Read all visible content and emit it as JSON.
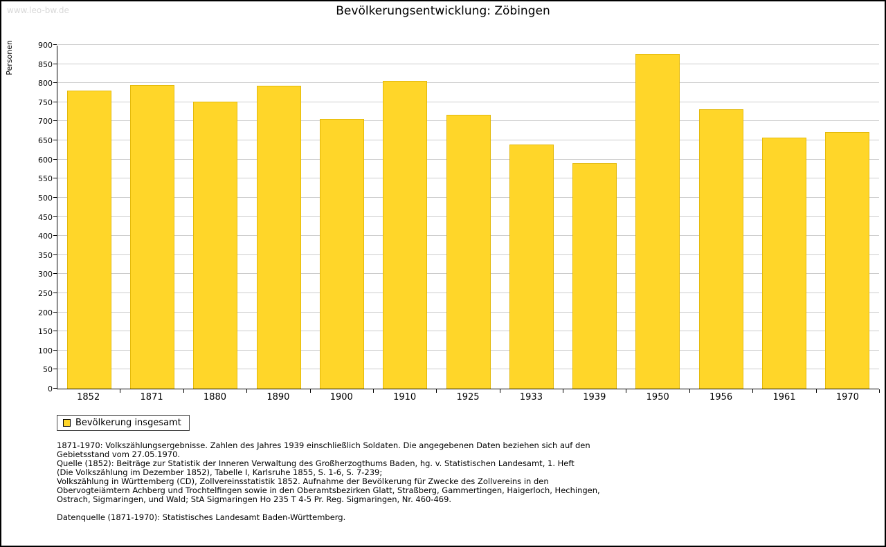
{
  "watermark": "www.leo-bw.de",
  "chart_data": {
    "type": "bar",
    "title": "Bevölkerungsentwicklung: Zöbingen",
    "ylabel": "Personen",
    "xlabel": "",
    "categories": [
      "1852",
      "1871",
      "1880",
      "1890",
      "1900",
      "1910",
      "1925",
      "1933",
      "1939",
      "1950",
      "1956",
      "1961",
      "1970"
    ],
    "values": [
      780,
      795,
      752,
      793,
      707,
      805,
      717,
      640,
      590,
      877,
      732,
      657,
      672
    ],
    "ylim": [
      0,
      900
    ],
    "ytick_step": 50,
    "grid": true,
    "legend": [
      "Bevölkerung insgesamt"
    ],
    "legend_position": "bottom-left",
    "bar_color": "#FFD629",
    "gridline_color": "#cccccc"
  },
  "notes": {
    "lines": [
      "1871-1970: Volkszählungsergebnisse. Zahlen des Jahres 1939 einschließlich Soldaten. Die angegebenen Daten beziehen sich auf den",
      "Gebietsstand vom 27.05.1970.",
      "Quelle (1852): Beiträge zur Statistik der Inneren Verwaltung des Großherzogthums Baden, hg. v. Statistischen Landesamt, 1. Heft",
      "(Die Volkszählung im Dezember 1852), Tabelle I, Karlsruhe 1855, S. 1-6, S. 7-239;",
      "Volkszählung in Württemberg (CD), Zollvereinsstatistik 1852. Aufnahme der Bevölkerung für Zwecke des Zollvereins in den",
      "Obervogteiämtern Achberg und Trochtelfingen sowie in den Oberamtsbezirken Glatt, Straßberg, Gammertingen, Haigerloch, Hechingen,",
      "Ostrach, Sigmaringen, und Wald; StA Sigmaringen Ho 235 T 4-5 Pr. Reg. Sigmaringen, Nr. 460-469.",
      "",
      "Datenquelle (1871-1970): Statistisches Landesamt Baden-Württemberg."
    ]
  }
}
